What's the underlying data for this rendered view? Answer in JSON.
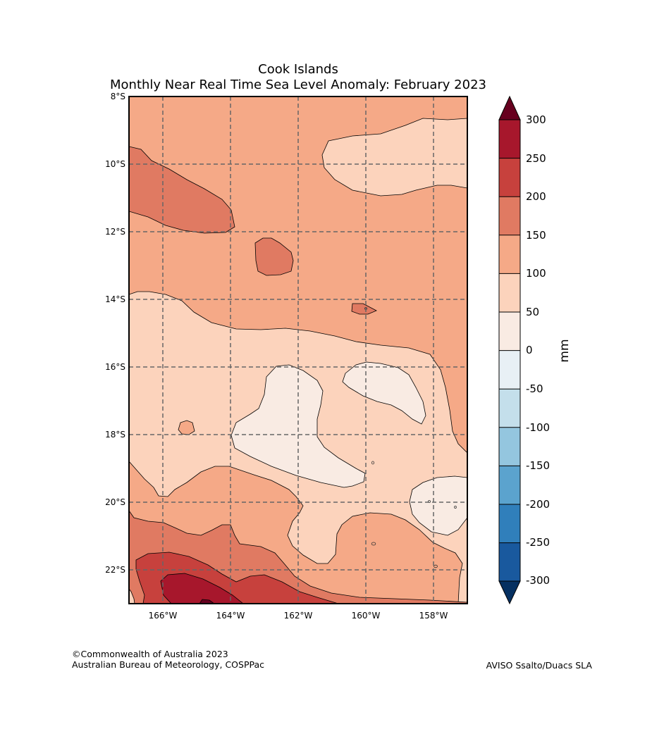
{
  "title": {
    "line1": "Cook Islands",
    "line2": "Monthly Near Real Time Sea Level Anomaly: February 2023"
  },
  "map": {
    "lat_labels": [
      "8°S",
      "10°S",
      "12°S",
      "14°S",
      "16°S",
      "18°S",
      "20°S",
      "22°S"
    ],
    "lon_labels": [
      "166°W",
      "164°W",
      "162°W",
      "160°W",
      "158°W"
    ],
    "lon_range": [
      -167,
      -157
    ],
    "lat_range": [
      -23,
      -8
    ]
  },
  "colorbar": {
    "unit": "mm",
    "levels": [
      300,
      250,
      200,
      150,
      100,
      50,
      0,
      -50,
      -100,
      -150,
      -200,
      -250,
      -300
    ],
    "colors": {
      "above_300": "#67001f",
      "c250_300": "#a7172c",
      "c200_250": "#c7413d",
      "c150_200": "#e07a62",
      "c100_150": "#f5a987",
      "c50_100": "#fcd3bc",
      "c0_50": "#f9ebe3",
      "cm50_0": "#e8f0f5",
      "cm100_m50": "#c4dfeb",
      "cm150_m100": "#94c6df",
      "cm200_m150": "#5ba3ce",
      "cm250_m200": "#307fbb",
      "cm300_m250": "#19599e",
      "below_m300": "#053061"
    }
  },
  "credits": {
    "left_line1": "©Commonwealth of Australia 2023",
    "left_line2": "Australian Bureau of Meteorology, COSPPac",
    "right": "AVISO Ssalto/Duacs SLA"
  }
}
